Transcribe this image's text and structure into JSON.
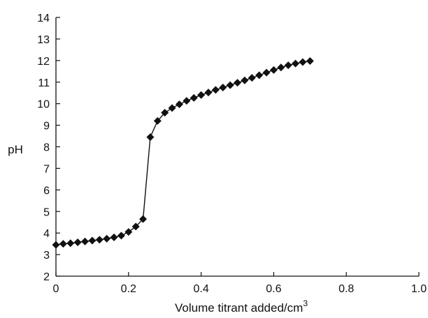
{
  "chart_data": {
    "type": "line",
    "title": "",
    "xlabel": "Volume titrant added/cm",
    "xlabel_superscript": "3",
    "ylabel": "pH",
    "xlim": [
      0,
      1.0
    ],
    "ylim": [
      2,
      14
    ],
    "x_ticks": [
      "0",
      "0.2",
      "0.4",
      "0.6",
      "0.8",
      "1.0"
    ],
    "y_ticks": [
      "2",
      "3",
      "4",
      "5",
      "6",
      "7",
      "8",
      "9",
      "10",
      "11",
      "12",
      "13",
      "14"
    ],
    "grid": false,
    "legend": "none",
    "marker": "diamond",
    "color": "#111111",
    "series": [
      {
        "x": [
          0.0,
          0.02,
          0.04,
          0.06,
          0.08,
          0.1,
          0.12,
          0.14,
          0.16,
          0.18,
          0.2,
          0.22,
          0.24,
          0.26,
          0.28,
          0.3,
          0.32,
          0.34,
          0.36,
          0.38,
          0.4,
          0.42,
          0.44,
          0.46,
          0.48,
          0.5,
          0.52,
          0.54,
          0.56,
          0.58,
          0.6,
          0.62,
          0.64,
          0.66,
          0.68,
          0.7
        ],
        "y": [
          3.45,
          3.5,
          3.53,
          3.57,
          3.61,
          3.65,
          3.69,
          3.74,
          3.8,
          3.88,
          4.05,
          4.3,
          4.65,
          8.45,
          9.2,
          9.58,
          9.8,
          9.97,
          10.13,
          10.27,
          10.4,
          10.52,
          10.64,
          10.75,
          10.86,
          10.97,
          11.08,
          11.2,
          11.32,
          11.44,
          11.56,
          11.68,
          11.78,
          11.86,
          11.93,
          11.98
        ]
      }
    ]
  }
}
